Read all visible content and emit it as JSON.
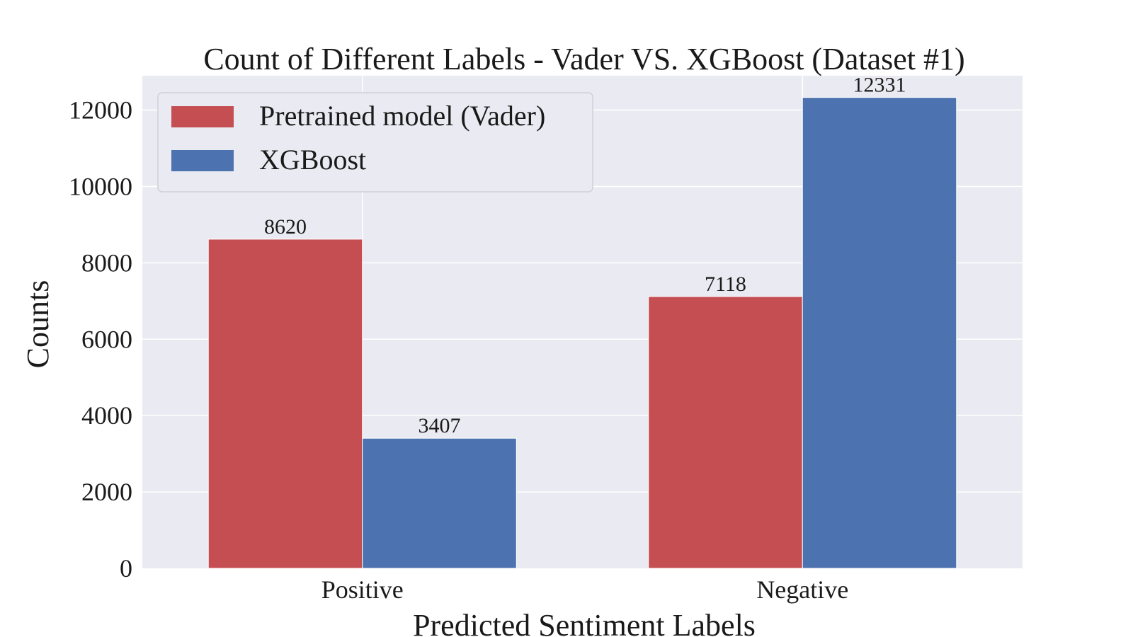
{
  "chart_data": {
    "type": "bar",
    "title": "Count of Different Labels - Vader VS. XGBoost (Dataset #1)",
    "xlabel": "Predicted Sentiment Labels",
    "ylabel": "Counts",
    "categories": [
      "Positive",
      "Negative"
    ],
    "series": [
      {
        "name": "Pretrained model (Vader)",
        "color": "#c44e52",
        "values": [
          8620,
          7118
        ]
      },
      {
        "name": "XGBoost",
        "color": "#4c72b0",
        "values": [
          3407,
          12331
        ]
      }
    ],
    "ylim": [
      0,
      12900
    ],
    "yticks": [
      0,
      2000,
      4000,
      6000,
      8000,
      10000,
      12000
    ],
    "grid": true,
    "legend_position": "upper-left",
    "background": "#eaeaf2"
  }
}
